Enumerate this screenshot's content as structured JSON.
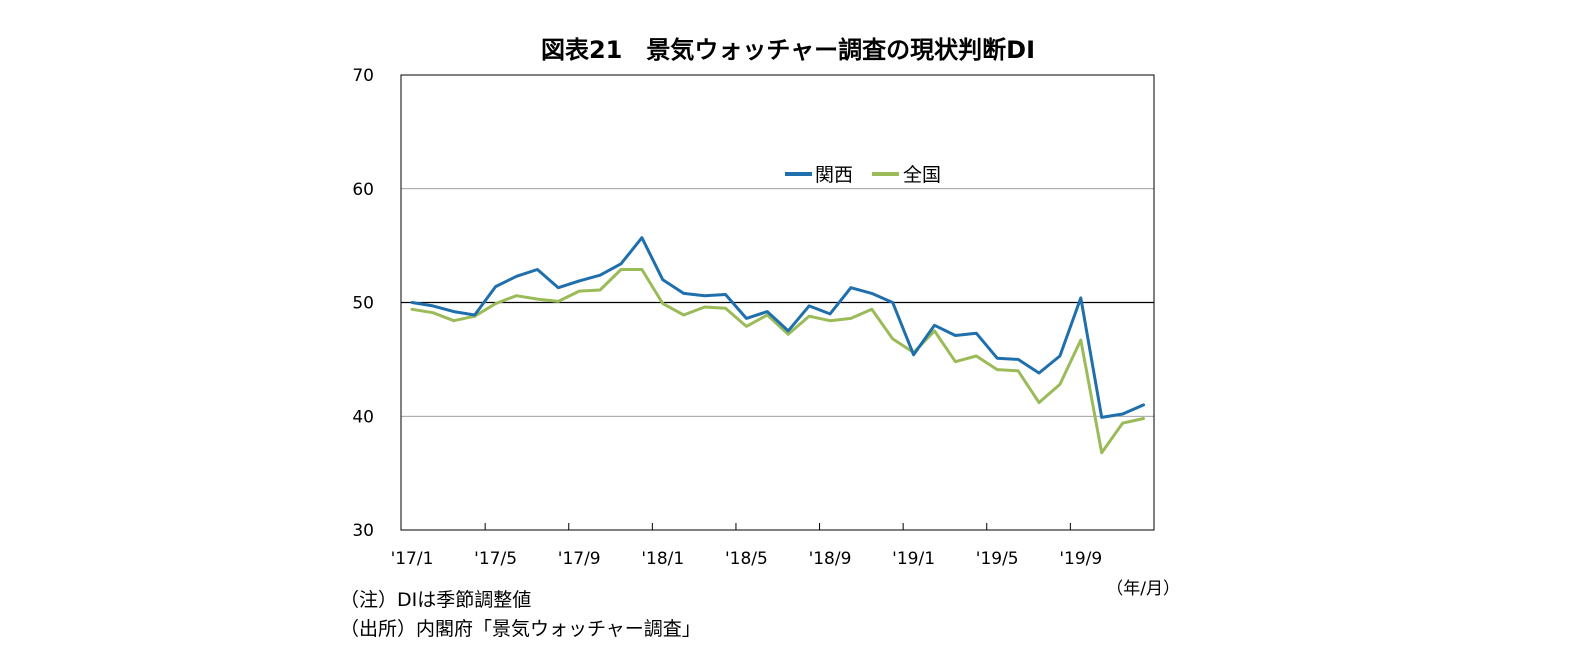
{
  "title": "図表21　景気ウォッチャー調査の現状判断DI",
  "x_unit_label": "（年/月）",
  "notes": {
    "note": "（注）DIは季節調整値",
    "source": "（出所）内閣府「景気ウォッチャー調査」"
  },
  "colors": {
    "kansai": "#1f6fad",
    "zenkoku": "#9bbb59",
    "reference_line": "#000000",
    "grid": "#7f7f7f"
  },
  "chart_data": {
    "type": "line",
    "title": "図表21　景気ウォッチャー調査の現状判断DI",
    "xlabel": "",
    "ylabel": "",
    "ylim": [
      30,
      70
    ],
    "yticks": [
      30,
      40,
      50,
      60,
      70
    ],
    "grid": true,
    "reference_line": 50,
    "legend_position": "top-center",
    "x_tick_labels": [
      "'17/1",
      "'17/5",
      "'17/9",
      "'18/1",
      "'18/5",
      "'18/9",
      "'19/1",
      "'19/5",
      "'19/9"
    ],
    "x": [
      "2017-01",
      "2017-02",
      "2017-03",
      "2017-04",
      "2017-05",
      "2017-06",
      "2017-07",
      "2017-08",
      "2017-09",
      "2017-10",
      "2017-11",
      "2017-12",
      "2018-01",
      "2018-02",
      "2018-03",
      "2018-04",
      "2018-05",
      "2018-06",
      "2018-07",
      "2018-08",
      "2018-09",
      "2018-10",
      "2018-11",
      "2018-12",
      "2019-01",
      "2019-02",
      "2019-03",
      "2019-04",
      "2019-05",
      "2019-06",
      "2019-07",
      "2019-08",
      "2019-09",
      "2019-10",
      "2019-11",
      "2019-12"
    ],
    "series": [
      {
        "name": "関西",
        "values": [
          50.0,
          49.7,
          49.2,
          48.9,
          51.4,
          52.3,
          52.9,
          51.3,
          51.9,
          52.4,
          53.4,
          55.7,
          52.0,
          50.8,
          50.6,
          50.7,
          48.6,
          49.2,
          47.5,
          49.7,
          49.0,
          51.3,
          50.8,
          50.0,
          45.4,
          48.0,
          47.1,
          47.3,
          45.1,
          45.0,
          43.8,
          45.3,
          50.4,
          39.9,
          40.2,
          41.0
        ]
      },
      {
        "name": "全国",
        "values": [
          49.4,
          49.1,
          48.4,
          48.8,
          49.9,
          50.6,
          50.3,
          50.1,
          51.0,
          51.1,
          52.9,
          52.9,
          49.9,
          48.9,
          49.6,
          49.5,
          47.9,
          48.9,
          47.2,
          48.8,
          48.4,
          48.6,
          49.4,
          46.8,
          45.6,
          47.5,
          44.8,
          45.3,
          44.1,
          44.0,
          41.2,
          42.8,
          46.7,
          36.8,
          39.4,
          39.8
        ]
      }
    ]
  }
}
